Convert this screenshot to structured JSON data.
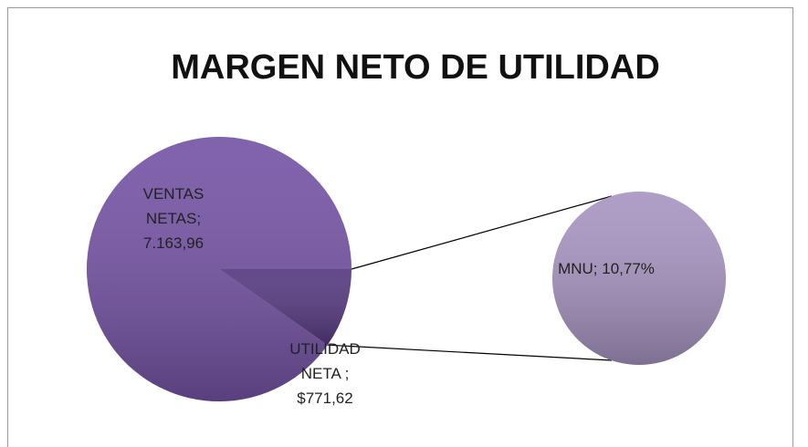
{
  "chart_data": {
    "type": "pie-of-pie",
    "title": "MARGEN NETO DE UTILIDAD",
    "main": {
      "values": [
        7163.96,
        771.62
      ],
      "value_labels": [
        "VENTAS NETAS; 7.163,96",
        "UTILIDAD NETA ; $771,62"
      ],
      "colors": [
        "#7654a6",
        "#563a80"
      ]
    },
    "secondary": {
      "values": [
        10.77
      ],
      "value_labels": [
        "MNU; 10,77%"
      ],
      "colors": [
        "#a895c2"
      ]
    }
  }
}
